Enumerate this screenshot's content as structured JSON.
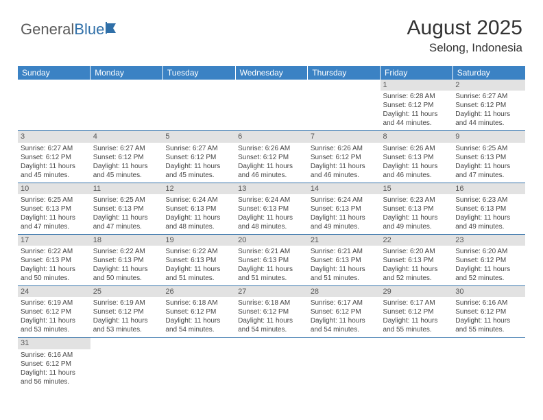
{
  "brand": {
    "part1": "General",
    "part2": "Blue"
  },
  "title": "August 2025",
  "location": "Selong, Indonesia",
  "colors": {
    "header_bg": "#3b82c4",
    "header_text": "#ffffff",
    "daynum_bg": "#e2e2e2",
    "border": "#2f6fa8",
    "logo_accent": "#2f6fa8",
    "text": "#333333"
  },
  "weekdays": [
    "Sunday",
    "Monday",
    "Tuesday",
    "Wednesday",
    "Thursday",
    "Friday",
    "Saturday"
  ],
  "weeks": [
    [
      null,
      null,
      null,
      null,
      null,
      {
        "n": "1",
        "sunrise": "6:28 AM",
        "sunset": "6:12 PM",
        "day_h": "11",
        "day_m": "44"
      },
      {
        "n": "2",
        "sunrise": "6:27 AM",
        "sunset": "6:12 PM",
        "day_h": "11",
        "day_m": "44"
      }
    ],
    [
      {
        "n": "3",
        "sunrise": "6:27 AM",
        "sunset": "6:12 PM",
        "day_h": "11",
        "day_m": "45"
      },
      {
        "n": "4",
        "sunrise": "6:27 AM",
        "sunset": "6:12 PM",
        "day_h": "11",
        "day_m": "45"
      },
      {
        "n": "5",
        "sunrise": "6:27 AM",
        "sunset": "6:12 PM",
        "day_h": "11",
        "day_m": "45"
      },
      {
        "n": "6",
        "sunrise": "6:26 AM",
        "sunset": "6:12 PM",
        "day_h": "11",
        "day_m": "46"
      },
      {
        "n": "7",
        "sunrise": "6:26 AM",
        "sunset": "6:12 PM",
        "day_h": "11",
        "day_m": "46"
      },
      {
        "n": "8",
        "sunrise": "6:26 AM",
        "sunset": "6:13 PM",
        "day_h": "11",
        "day_m": "46"
      },
      {
        "n": "9",
        "sunrise": "6:25 AM",
        "sunset": "6:13 PM",
        "day_h": "11",
        "day_m": "47"
      }
    ],
    [
      {
        "n": "10",
        "sunrise": "6:25 AM",
        "sunset": "6:13 PM",
        "day_h": "11",
        "day_m": "47"
      },
      {
        "n": "11",
        "sunrise": "6:25 AM",
        "sunset": "6:13 PM",
        "day_h": "11",
        "day_m": "47"
      },
      {
        "n": "12",
        "sunrise": "6:24 AM",
        "sunset": "6:13 PM",
        "day_h": "11",
        "day_m": "48"
      },
      {
        "n": "13",
        "sunrise": "6:24 AM",
        "sunset": "6:13 PM",
        "day_h": "11",
        "day_m": "48"
      },
      {
        "n": "14",
        "sunrise": "6:24 AM",
        "sunset": "6:13 PM",
        "day_h": "11",
        "day_m": "49"
      },
      {
        "n": "15",
        "sunrise": "6:23 AM",
        "sunset": "6:13 PM",
        "day_h": "11",
        "day_m": "49"
      },
      {
        "n": "16",
        "sunrise": "6:23 AM",
        "sunset": "6:13 PM",
        "day_h": "11",
        "day_m": "49"
      }
    ],
    [
      {
        "n": "17",
        "sunrise": "6:22 AM",
        "sunset": "6:13 PM",
        "day_h": "11",
        "day_m": "50"
      },
      {
        "n": "18",
        "sunrise": "6:22 AM",
        "sunset": "6:13 PM",
        "day_h": "11",
        "day_m": "50"
      },
      {
        "n": "19",
        "sunrise": "6:22 AM",
        "sunset": "6:13 PM",
        "day_h": "11",
        "day_m": "51"
      },
      {
        "n": "20",
        "sunrise": "6:21 AM",
        "sunset": "6:13 PM",
        "day_h": "11",
        "day_m": "51"
      },
      {
        "n": "21",
        "sunrise": "6:21 AM",
        "sunset": "6:13 PM",
        "day_h": "11",
        "day_m": "51"
      },
      {
        "n": "22",
        "sunrise": "6:20 AM",
        "sunset": "6:13 PM",
        "day_h": "11",
        "day_m": "52"
      },
      {
        "n": "23",
        "sunrise": "6:20 AM",
        "sunset": "6:12 PM",
        "day_h": "11",
        "day_m": "52"
      }
    ],
    [
      {
        "n": "24",
        "sunrise": "6:19 AM",
        "sunset": "6:12 PM",
        "day_h": "11",
        "day_m": "53"
      },
      {
        "n": "25",
        "sunrise": "6:19 AM",
        "sunset": "6:12 PM",
        "day_h": "11",
        "day_m": "53"
      },
      {
        "n": "26",
        "sunrise": "6:18 AM",
        "sunset": "6:12 PM",
        "day_h": "11",
        "day_m": "54"
      },
      {
        "n": "27",
        "sunrise": "6:18 AM",
        "sunset": "6:12 PM",
        "day_h": "11",
        "day_m": "54"
      },
      {
        "n": "28",
        "sunrise": "6:17 AM",
        "sunset": "6:12 PM",
        "day_h": "11",
        "day_m": "54"
      },
      {
        "n": "29",
        "sunrise": "6:17 AM",
        "sunset": "6:12 PM",
        "day_h": "11",
        "day_m": "55"
      },
      {
        "n": "30",
        "sunrise": "6:16 AM",
        "sunset": "6:12 PM",
        "day_h": "11",
        "day_m": "55"
      }
    ],
    [
      {
        "n": "31",
        "sunrise": "6:16 AM",
        "sunset": "6:12 PM",
        "day_h": "11",
        "day_m": "56"
      },
      null,
      null,
      null,
      null,
      null,
      null
    ]
  ],
  "labels": {
    "sunrise": "Sunrise:",
    "sunset": "Sunset:",
    "daylight": "Daylight:",
    "hours": "hours",
    "and": "and",
    "minutes": "minutes."
  }
}
